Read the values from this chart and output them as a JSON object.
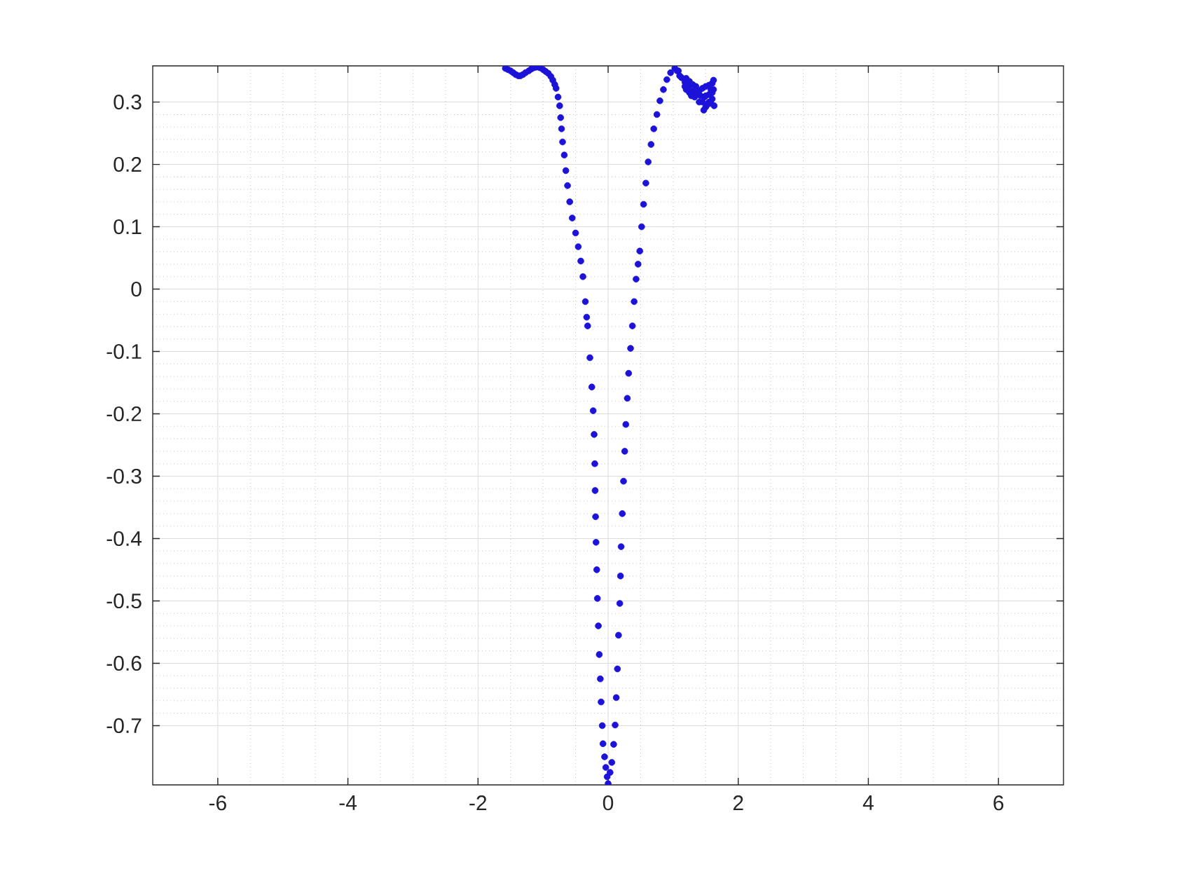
{
  "chart_data": {
    "type": "scatter",
    "marker": "circle",
    "color": "#1c12d8",
    "grid": true,
    "xlim": [
      -7,
      7
    ],
    "ylim": [
      -0.795,
      0.358
    ],
    "xticks": [
      -6,
      -4,
      -2,
      0,
      2,
      4,
      6
    ],
    "yticks": [
      -0.7,
      -0.6,
      -0.5,
      -0.4,
      -0.3,
      -0.2,
      -0.1,
      0,
      0.1,
      0.2,
      0.3
    ],
    "x": [
      -1.58,
      -1.54,
      -1.5,
      -1.46,
      -1.42,
      -1.38,
      -1.35,
      -1.31,
      -1.27,
      -1.22,
      -1.18,
      -1.14,
      -1.1,
      -1.05,
      -1.0,
      -0.96,
      -0.92,
      -0.88,
      -0.85,
      -0.82,
      -0.8,
      -0.77,
      -0.745,
      -0.73,
      -0.716,
      -0.7,
      -0.674,
      -0.65,
      -0.624,
      -0.59,
      -0.552,
      -0.5,
      -0.459,
      -0.42,
      -0.387,
      -0.35,
      -0.33,
      -0.315,
      -0.28,
      -0.251,
      -0.23,
      -0.215,
      -0.205,
      -0.2,
      -0.193,
      -0.186,
      -0.175,
      -0.165,
      -0.15,
      -0.136,
      -0.12,
      -0.108,
      -0.09,
      -0.079,
      -0.055,
      -0.036,
      -0.015,
      0.0,
      0.03,
      0.057,
      0.085,
      0.108,
      0.125,
      0.143,
      0.16,
      0.179,
      0.19,
      0.2,
      0.218,
      0.237,
      0.255,
      0.272,
      0.295,
      0.315,
      0.345,
      0.373,
      0.4,
      0.43,
      0.46,
      0.487,
      0.515,
      0.545,
      0.58,
      0.616,
      0.66,
      0.702,
      0.75,
      0.796,
      0.85,
      0.903,
      0.96,
      1.025,
      1.08,
      1.13,
      1.18,
      1.24,
      1.3,
      1.35,
      1.4,
      1.45,
      1.5,
      1.55,
      1.6,
      1.62,
      1.6,
      1.55,
      1.5,
      1.47,
      1.52,
      1.58,
      1.63,
      1.6,
      1.55,
      1.48,
      1.4,
      1.33,
      1.25,
      1.18,
      1.1,
      1.06,
      1.2,
      1.25,
      1.3,
      1.35,
      1.42,
      1.5,
      1.58,
      1.62,
      1.2,
      1.28,
      1.38,
      1.45
    ],
    "values": [
      0.354,
      0.352,
      0.35,
      0.347,
      0.344,
      0.342,
      0.342,
      0.344,
      0.347,
      0.35,
      0.353,
      0.355,
      0.356,
      0.355,
      0.352,
      0.349,
      0.346,
      0.341,
      0.335,
      0.328,
      0.322,
      0.308,
      0.294,
      0.275,
      0.257,
      0.236,
      0.215,
      0.19,
      0.166,
      0.14,
      0.114,
      0.09,
      0.068,
      0.045,
      0.02,
      -0.02,
      -0.045,
      -0.059,
      -0.11,
      -0.157,
      -0.195,
      -0.233,
      -0.28,
      -0.323,
      -0.365,
      -0.406,
      -0.45,
      -0.496,
      -0.54,
      -0.586,
      -0.625,
      -0.662,
      -0.7,
      -0.729,
      -0.75,
      -0.767,
      -0.782,
      -0.793,
      -0.775,
      -0.759,
      -0.73,
      -0.699,
      -0.655,
      -0.609,
      -0.555,
      -0.504,
      -0.46,
      -0.413,
      -0.36,
      -0.308,
      -0.26,
      -0.217,
      -0.175,
      -0.135,
      -0.095,
      -0.059,
      -0.02,
      0.016,
      0.04,
      0.061,
      0.1,
      0.136,
      0.17,
      0.204,
      0.232,
      0.257,
      0.28,
      0.302,
      0.32,
      0.336,
      0.347,
      0.354,
      0.35,
      0.339,
      0.332,
      0.325,
      0.318,
      0.312,
      0.318,
      0.322,
      0.325,
      0.327,
      0.33,
      0.32,
      0.305,
      0.3,
      0.292,
      0.287,
      0.295,
      0.298,
      0.294,
      0.315,
      0.312,
      0.308,
      0.3,
      0.308,
      0.315,
      0.325,
      0.342,
      0.35,
      0.338,
      0.333,
      0.328,
      0.325,
      0.31,
      0.31,
      0.32,
      0.335,
      0.32,
      0.31,
      0.316,
      0.3
    ]
  }
}
